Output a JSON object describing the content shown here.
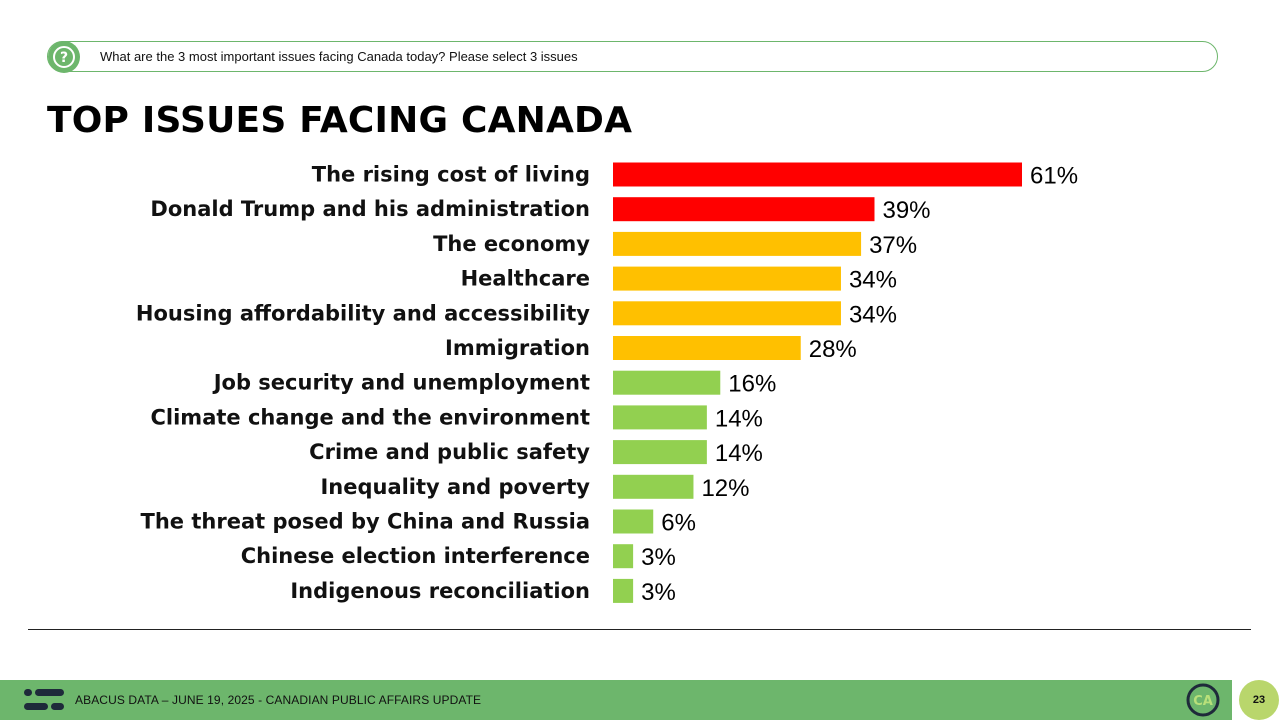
{
  "question": {
    "icon": "question-circle-icon",
    "text": "What are the 3 most important issues facing Canada today? Please select 3 issues"
  },
  "title": "TOP ISSUES FACING CANADA",
  "colors": {
    "red": "#ff0000",
    "amber": "#ffc000",
    "green": "#92d050",
    "brand_green": "#6db66c",
    "page_badge": "#b9d66c"
  },
  "chart_data": {
    "type": "bar",
    "orientation": "horizontal",
    "categories": [
      "The rising cost of living",
      "Donald Trump and his administration",
      "The economy",
      "Healthcare",
      "Housing affordability and accessibility",
      "Immigration",
      "Job security and unemployment",
      "Climate change and the environment",
      "Crime and public safety",
      "Inequality and poverty",
      "The threat posed by China and Russia",
      "Chinese election interference",
      "Indigenous reconciliation"
    ],
    "values": [
      61,
      39,
      37,
      34,
      34,
      28,
      16,
      14,
      14,
      12,
      6,
      3,
      3
    ],
    "data_labels": [
      "61%",
      "39%",
      "37%",
      "34%",
      "34%",
      "28%",
      "16%",
      "14%",
      "14%",
      "12%",
      "6%",
      "3%",
      "3%"
    ],
    "bar_colors": [
      "#ff0000",
      "#ff0000",
      "#ffc000",
      "#ffc000",
      "#ffc000",
      "#ffc000",
      "#92d050",
      "#92d050",
      "#92d050",
      "#92d050",
      "#92d050",
      "#92d050",
      "#92d050"
    ],
    "title": "TOP ISSUES FACING CANADA",
    "xlim": [
      0,
      100
    ],
    "grid": false,
    "legend": "none"
  },
  "footer": {
    "logo_icon": "abacus-logo-icon",
    "text": "ABACUS DATA – JUNE 19, 2025 - CANADIAN PUBLIC AFFAIRS UPDATE",
    "badge_icon": "ca-badge-icon",
    "badge_text": "CA",
    "page_number": "23"
  }
}
